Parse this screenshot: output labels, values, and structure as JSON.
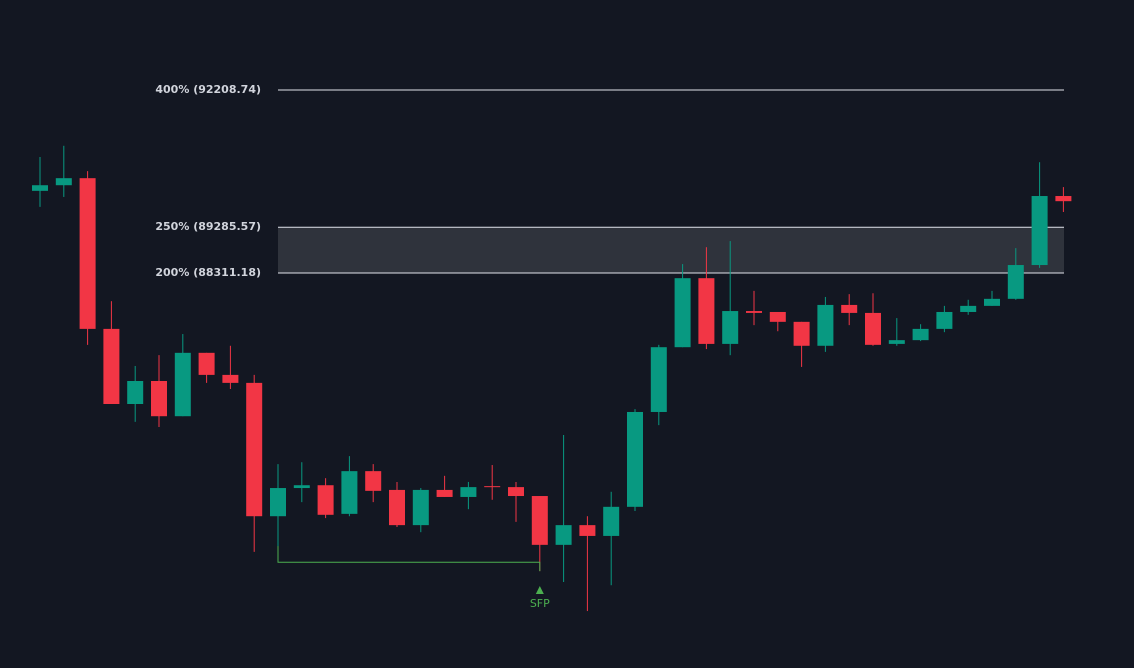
{
  "chart_data": {
    "type": "candlestick",
    "up_color": "#089981",
    "down_color": "#f23645",
    "ylim": [
      79897,
      94125
    ],
    "open": [
      90060,
      90180,
      90330,
      87120,
      85520,
      86010,
      85260,
      86610,
      86140,
      85970,
      83130,
      83730,
      83790,
      83180,
      84090,
      83690,
      82940,
      83690,
      83540,
      83770,
      83750,
      83560,
      82520,
      82940,
      82710,
      83330,
      85350,
      86730,
      88200,
      86800,
      87500,
      87480,
      87270,
      86760,
      87630,
      87460,
      86800,
      86880,
      87120,
      87480,
      87610,
      87760,
      88480,
      89950
    ],
    "high": [
      90780,
      91020,
      90480,
      87710,
      86330,
      86560,
      87010,
      86610,
      86760,
      86140,
      84240,
      84280,
      83940,
      84410,
      84240,
      83860,
      83730,
      83990,
      83860,
      84220,
      83860,
      83560,
      84860,
      83130,
      83650,
      85410,
      86780,
      88500,
      88860,
      88990,
      87930,
      87480,
      87270,
      87800,
      87860,
      87880,
      87350,
      87220,
      87610,
      87740,
      87930,
      88840,
      90670,
      90140
    ],
    "low": [
      89720,
      89930,
      86780,
      85520,
      85140,
      85030,
      85260,
      85970,
      85840,
      82370,
      82450,
      83430,
      83090,
      83130,
      83430,
      82900,
      82790,
      83540,
      83280,
      83480,
      83010,
      81960,
      81730,
      81110,
      81660,
      83240,
      85070,
      86730,
      86690,
      86560,
      87200,
      87070,
      86310,
      86630,
      87200,
      86760,
      86760,
      86860,
      87050,
      87420,
      87610,
      87740,
      88420,
      89610
    ],
    "close": [
      90180,
      90330,
      87120,
      85520,
      86010,
      85260,
      86610,
      86140,
      85970,
      83130,
      83730,
      83790,
      83160,
      84090,
      83670,
      82940,
      83690,
      83540,
      83750,
      83750,
      83560,
      82520,
      82940,
      82710,
      83330,
      85350,
      86730,
      88200,
      86800,
      87500,
      87460,
      87270,
      86760,
      87630,
      87460,
      86780,
      86880,
      87120,
      87480,
      87610,
      87760,
      88480,
      89950,
      89840
    ],
    "levels": [
      {
        "label": "400% (92208.74)",
        "value": 92208.74
      },
      {
        "label": "250% (89285.57)",
        "value": 89285.57
      },
      {
        "label": "200% (88311.18)",
        "value": 88311.18
      }
    ],
    "zone_color": "rgba(255,255,255,0.12)",
    "sfp": {
      "label": "SFP",
      "level": 82150,
      "color": "#4caf50"
    }
  }
}
